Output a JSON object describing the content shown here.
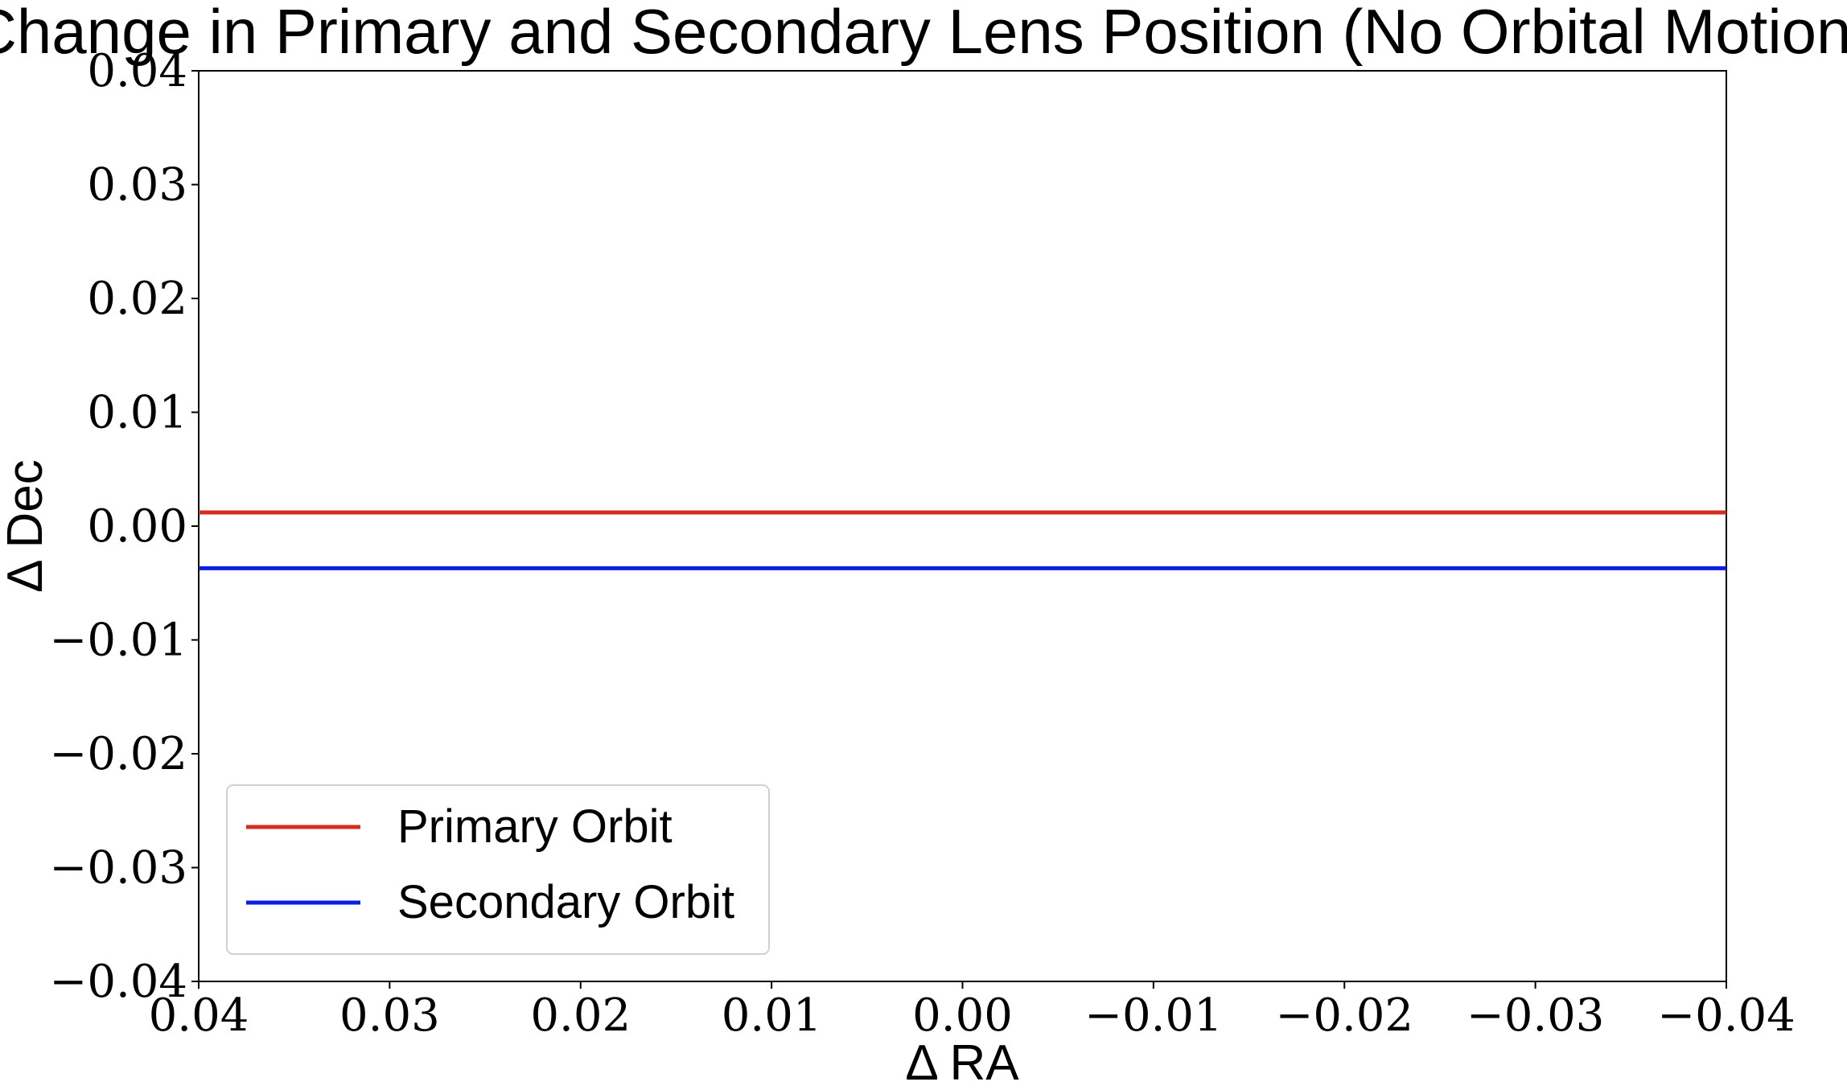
{
  "chart_data": {
    "type": "line",
    "title": "Change in Primary and Secondary Lens Position (No Orbital Motion)",
    "xlabel": "Δ RA",
    "ylabel": "Δ Dec",
    "xlim": [
      0.04,
      -0.04
    ],
    "ylim": [
      -0.04,
      0.04
    ],
    "x_inverted": true,
    "grid": false,
    "legend_position": "lower-left",
    "xticks": [
      0.04,
      0.03,
      0.02,
      0.01,
      0.0,
      -0.01,
      -0.02,
      -0.03,
      -0.04
    ],
    "xtick_labels": [
      "0.04",
      "0.03",
      "0.02",
      "0.01",
      "0.00",
      "−0.01",
      "−0.02",
      "−0.03",
      "−0.04"
    ],
    "yticks": [
      0.04,
      0.03,
      0.02,
      0.01,
      0.0,
      -0.01,
      -0.02,
      -0.03,
      -0.04
    ],
    "ytick_labels": [
      "0.04",
      "0.03",
      "0.02",
      "0.01",
      "0.00",
      "−0.01",
      "−0.02",
      "−0.03",
      "−0.04"
    ],
    "series": [
      {
        "name": "Primary Orbit",
        "color": "#d62c1f",
        "x": [
          0.04,
          -0.04
        ],
        "y": [
          0.0012,
          0.0012
        ]
      },
      {
        "name": "Secondary Orbit",
        "color": "#0c1fe0",
        "x": [
          0.04,
          -0.04
        ],
        "y": [
          -0.0037,
          -0.0037
        ]
      }
    ]
  }
}
